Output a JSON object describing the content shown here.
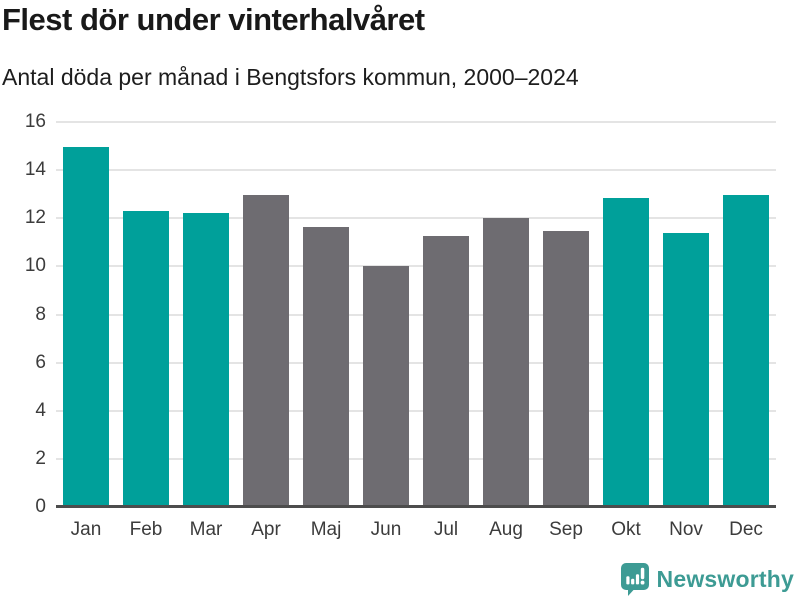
{
  "header": {
    "title": "Flest dör under vinterhalvåret",
    "subtitle": "Antal döda per månad i Bengtsfors kommun, 2000–2024"
  },
  "chart_data": {
    "type": "bar",
    "title": "Flest dör under vinterhalvåret",
    "subtitle": "Antal döda per månad i Bengtsfors kommun, 2000–2024",
    "categories": [
      "Jan",
      "Feb",
      "Mar",
      "Apr",
      "Maj",
      "Jun",
      "Jul",
      "Aug",
      "Sep",
      "Okt",
      "Nov",
      "Dec"
    ],
    "values": [
      14.95,
      12.3,
      12.2,
      12.95,
      11.65,
      10.0,
      11.25,
      12.0,
      11.45,
      12.85,
      11.4,
      12.95
    ],
    "winter_highlight": [
      true,
      true,
      true,
      false,
      false,
      false,
      false,
      false,
      false,
      true,
      true,
      true
    ],
    "xlabel": "",
    "ylabel": "",
    "ylim": [
      0,
      16
    ],
    "yticks": [
      0,
      2,
      4,
      6,
      8,
      10,
      12,
      14,
      16
    ],
    "grid": "horizontal",
    "legend": "none",
    "colors": {
      "winter_bar": "#00a09a",
      "other_bar": "#6e6c71",
      "gridline": "#e4e4e4",
      "axis_line": "#4d4d4d",
      "tick_text": "#3c3c3c"
    }
  },
  "footer": {
    "brand": "Newsworthy",
    "brand_color": "#3d9b94",
    "logo_icon": "bar-chart-speech-bubble-icon"
  }
}
